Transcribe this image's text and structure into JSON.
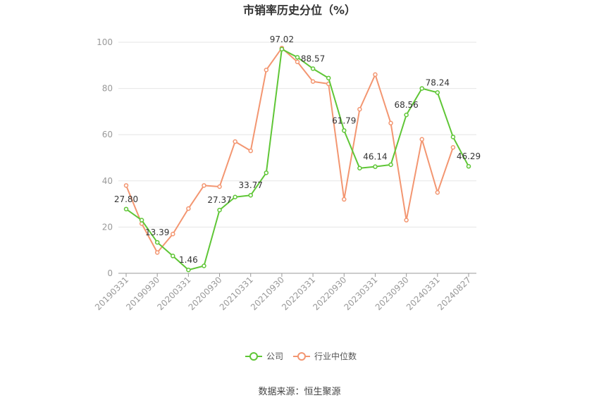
{
  "chart_data": {
    "type": "line",
    "title": "市销率历史分位（%）",
    "source": "数据来源：恒生聚源",
    "ylim": [
      0,
      100
    ],
    "yticks": [
      0,
      20,
      40,
      60,
      80,
      100
    ],
    "grid": true,
    "legend_position": "bottom",
    "x": [
      "20190331",
      "20190630",
      "20190930",
      "20191231",
      "20200331",
      "20200630",
      "20200930",
      "20201231",
      "20210331",
      "20210630",
      "20210930",
      "20211231",
      "20220331",
      "20220630",
      "20220930",
      "20221231",
      "20230331",
      "20230630",
      "20230930",
      "20231231",
      "20240331",
      "20240630",
      "20240827"
    ],
    "x_tick_labels": [
      "20190331",
      "20190930",
      "20200331",
      "20200930",
      "20210331",
      "20210930",
      "20220331",
      "20220930",
      "20230331",
      "20230930",
      "20240331",
      "20240827"
    ],
    "x_tick_indices": [
      0,
      2,
      4,
      6,
      8,
      10,
      12,
      14,
      16,
      18,
      20,
      22
    ],
    "series": [
      {
        "name": "公司",
        "color": "#5fc636",
        "values": [
          27.8,
          23.0,
          13.39,
          7.5,
          1.46,
          3.2,
          27.37,
          33.0,
          33.77,
          43.5,
          97.02,
          93.5,
          88.57,
          84.5,
          61.79,
          45.5,
          46.14,
          47.0,
          68.56,
          80.0,
          78.24,
          59.0,
          46.29
        ],
        "labels": {
          "0": "27.80",
          "2": "13.39",
          "4": "1.46",
          "6": "27.37",
          "8": "33.77",
          "10": "97.02",
          "12": "88.57",
          "14": "61.79",
          "16": "46.14",
          "18": "68.56",
          "20": "78.24",
          "22": "46.29"
        }
      },
      {
        "name": "行业中位数",
        "color": "#f39671",
        "values": [
          38.0,
          21.5,
          9.0,
          17.0,
          28.0,
          38.0,
          37.5,
          57.0,
          53.0,
          88.0,
          97.5,
          91.5,
          83.0,
          82.0,
          32.0,
          71.0,
          86.0,
          65.0,
          23.0,
          58.0,
          35.0,
          54.5,
          null
        ]
      }
    ]
  }
}
